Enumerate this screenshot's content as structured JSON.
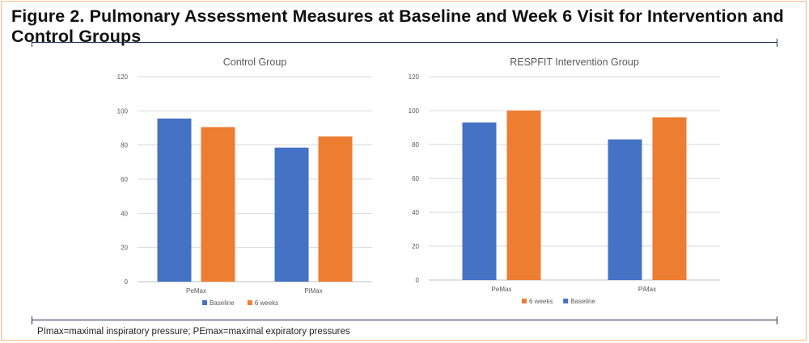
{
  "figure": {
    "title": "Figure 2. Pulmonary Assessment Measures at Baseline and Week 6 Visit for Intervention and Control Groups",
    "footnote": "PImax=maximal inspiratory pressure; PEmax=maximal expiratory pressures"
  },
  "colors": {
    "baseline": "#4472c4",
    "six_weeks": "#ed7d31",
    "gridline": "#d9d9d9",
    "axis_text": "#595959",
    "rule": "#1a2f52"
  },
  "chart_data": [
    {
      "type": "bar",
      "title": "Control Group",
      "categories": [
        "PeMax",
        "PiMax"
      ],
      "series": [
        {
          "name": "Baseline",
          "values": [
            95.5,
            78.5
          ],
          "color": "#4472c4"
        },
        {
          "name": "6 weeks",
          "values": [
            90.5,
            85
          ],
          "color": "#ed7d31"
        }
      ],
      "legend_order": [
        "Baseline",
        "6 weeks"
      ],
      "ylim": [
        0,
        120
      ],
      "yticks": [
        0,
        20,
        40,
        60,
        80,
        100,
        120
      ],
      "grid": true,
      "legend_position": "bottom"
    },
    {
      "type": "bar",
      "title": "RESPFIT Intervention Group",
      "categories": [
        "PeMax",
        "PiMax"
      ],
      "series": [
        {
          "name": "Baseline",
          "values": [
            93,
            83
          ],
          "color": "#4472c4"
        },
        {
          "name": "6 weeks",
          "values": [
            100,
            96
          ],
          "color": "#ed7d31"
        }
      ],
      "legend_order": [
        "6 weeks",
        "Baseline"
      ],
      "ylim": [
        0,
        120
      ],
      "yticks": [
        0,
        20,
        40,
        60,
        80,
        100,
        120
      ],
      "grid": true,
      "legend_position": "bottom"
    }
  ]
}
